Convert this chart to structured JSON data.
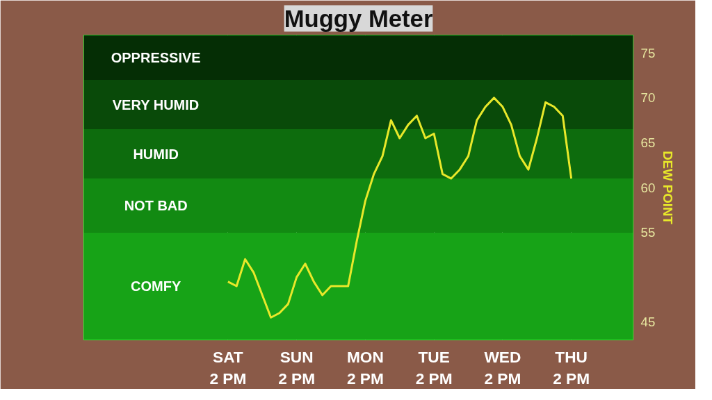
{
  "chart_data": {
    "type": "line",
    "title": "Muggy Meter",
    "ylabel": "DEW POINT",
    "categories": [
      "SAT\n2 PM",
      null,
      null,
      null,
      null,
      null,
      null,
      null,
      "SUN\n2 PM",
      null,
      null,
      null,
      null,
      null,
      null,
      null,
      "MON\n2 PM",
      null,
      null,
      null,
      null,
      null,
      null,
      null,
      "TUE\n2 PM",
      null,
      null,
      null,
      null,
      null,
      null,
      null,
      "WED\n2 PM",
      null,
      null,
      null,
      null,
      null,
      null,
      null,
      "THU\n2 PM"
    ],
    "series": [
      {
        "color": "#e8e82a",
        "values": [
          49.5,
          49,
          52,
          50.5,
          48,
          45.5,
          46,
          47,
          50,
          51.5,
          49.5,
          48,
          49,
          49,
          49,
          54,
          58.5,
          61.5,
          63.5,
          67.5,
          65.5,
          67,
          68,
          65.5,
          66,
          61.5,
          61,
          62,
          63.5,
          67.5,
          69,
          70,
          69,
          67,
          63.5,
          62,
          65.5,
          69.5,
          69,
          68,
          61
        ]
      }
    ],
    "ylim": [
      43,
      77
    ],
    "yticks": [
      45,
      55,
      60,
      65,
      70,
      75
    ],
    "bands": [
      {
        "axis": "y",
        "from": 43,
        "to": 55,
        "label": "COMFY",
        "color": "#17a317"
      },
      {
        "axis": "y",
        "from": 55,
        "to": 61,
        "label": "NOT BAD",
        "color": "#128a12"
      },
      {
        "axis": "y",
        "from": 61,
        "to": 66.5,
        "label": "HUMID",
        "color": "#0d6c0d"
      },
      {
        "axis": "y",
        "from": 66.5,
        "to": 72,
        "label": "VERY HUMID",
        "color": "#094a09"
      },
      {
        "axis": "y",
        "from": 72,
        "to": 77,
        "label": "OPPRESSIVE",
        "color": "#052e05"
      }
    ],
    "grid": "x",
    "marker": "none",
    "line_style": "solid"
  }
}
